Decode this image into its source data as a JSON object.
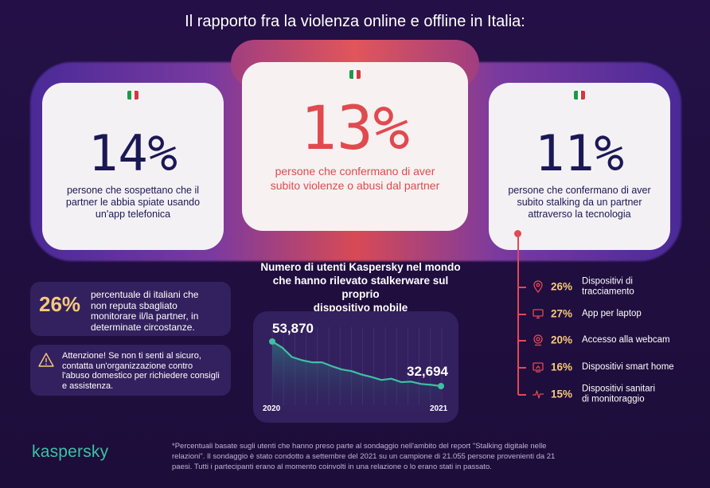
{
  "title": "Il rapporto fra la violenza online e offline in Italia:",
  "colors": {
    "navy": "#1b1856",
    "red": "#e04a4f",
    "gold": "#f7c97a",
    "teal": "#3dc1a2",
    "background": "#241046"
  },
  "stats": [
    {
      "value": "14%",
      "lines": [
        "persone che sospettano che il",
        "partner le abbia spiate usando",
        "un'app telefonica"
      ],
      "icon": "italy-flag-icon"
    },
    {
      "value": "13%",
      "lines": [
        "persone che confermano di aver",
        "subito violenze o abusi dal partner"
      ],
      "icon": "italy-flag-icon"
    },
    {
      "value": "11%",
      "lines": [
        "persone che confermano di aver",
        "subito stalking da un partner",
        "attraverso la tecnologia"
      ],
      "icon": "italy-flag-icon"
    }
  ],
  "opinion": {
    "value": "26%",
    "lines": [
      "percentuale di italiani che",
      "non reputa sbagliato",
      "monitorare il/la partner, in",
      "determinate circostanze."
    ]
  },
  "warning": {
    "icon": "warning-icon",
    "lines": [
      "Attenzione! Se non ti senti al sicuro,",
      "contatta un'organizzazione contro",
      "l'abuso domestico per richiedere consigli",
      "e assistenza."
    ]
  },
  "chart_title_lines": [
    "Numero di utenti Kaspersky nel mondo",
    "che hanno rilevato stalkerware sul proprio",
    "dispositivo mobile"
  ],
  "chart_data": {
    "type": "line",
    "x": [
      "2020",
      "2021"
    ],
    "start_label": "53,870",
    "end_label": "32,694",
    "start_value": 53870,
    "end_value": 32694,
    "trend_shape": [
      53870,
      51000,
      46500,
      45000,
      44000,
      44000,
      42200,
      40600,
      39800,
      38200,
      37000,
      35600,
      36200,
      34600,
      34800,
      33700,
      33300,
      32694
    ]
  },
  "devices": [
    {
      "icon": "location-pin-icon",
      "value": "26%",
      "lines": [
        "Dispositivi di",
        "tracciamento"
      ]
    },
    {
      "icon": "laptop-icon",
      "value": "27%",
      "lines": [
        "App per laptop"
      ]
    },
    {
      "icon": "webcam-icon",
      "value": "20%",
      "lines": [
        "Accesso alla webcam"
      ]
    },
    {
      "icon": "smart-home-icon",
      "value": "16%",
      "lines": [
        "Dispositivi smart home"
      ]
    },
    {
      "icon": "heart-rate-icon",
      "value": "15%",
      "lines": [
        "Dispositivi sanitari",
        "di monitoraggio"
      ]
    }
  ],
  "logo": "kaspersky",
  "footnote_lines": [
    "*Percentuali basate sugli utenti che hanno preso parte al sondaggio nell'ambito del report \"Stalking digitale nelle",
    "relazioni\". Il sondaggio è stato condotto a settembre del 2021 su un campione di 21.055 persone provenienti da 21",
    "paesi. Tutti i partecipanti erano al momento coinvolti in una relazione o lo erano stati in passato."
  ]
}
